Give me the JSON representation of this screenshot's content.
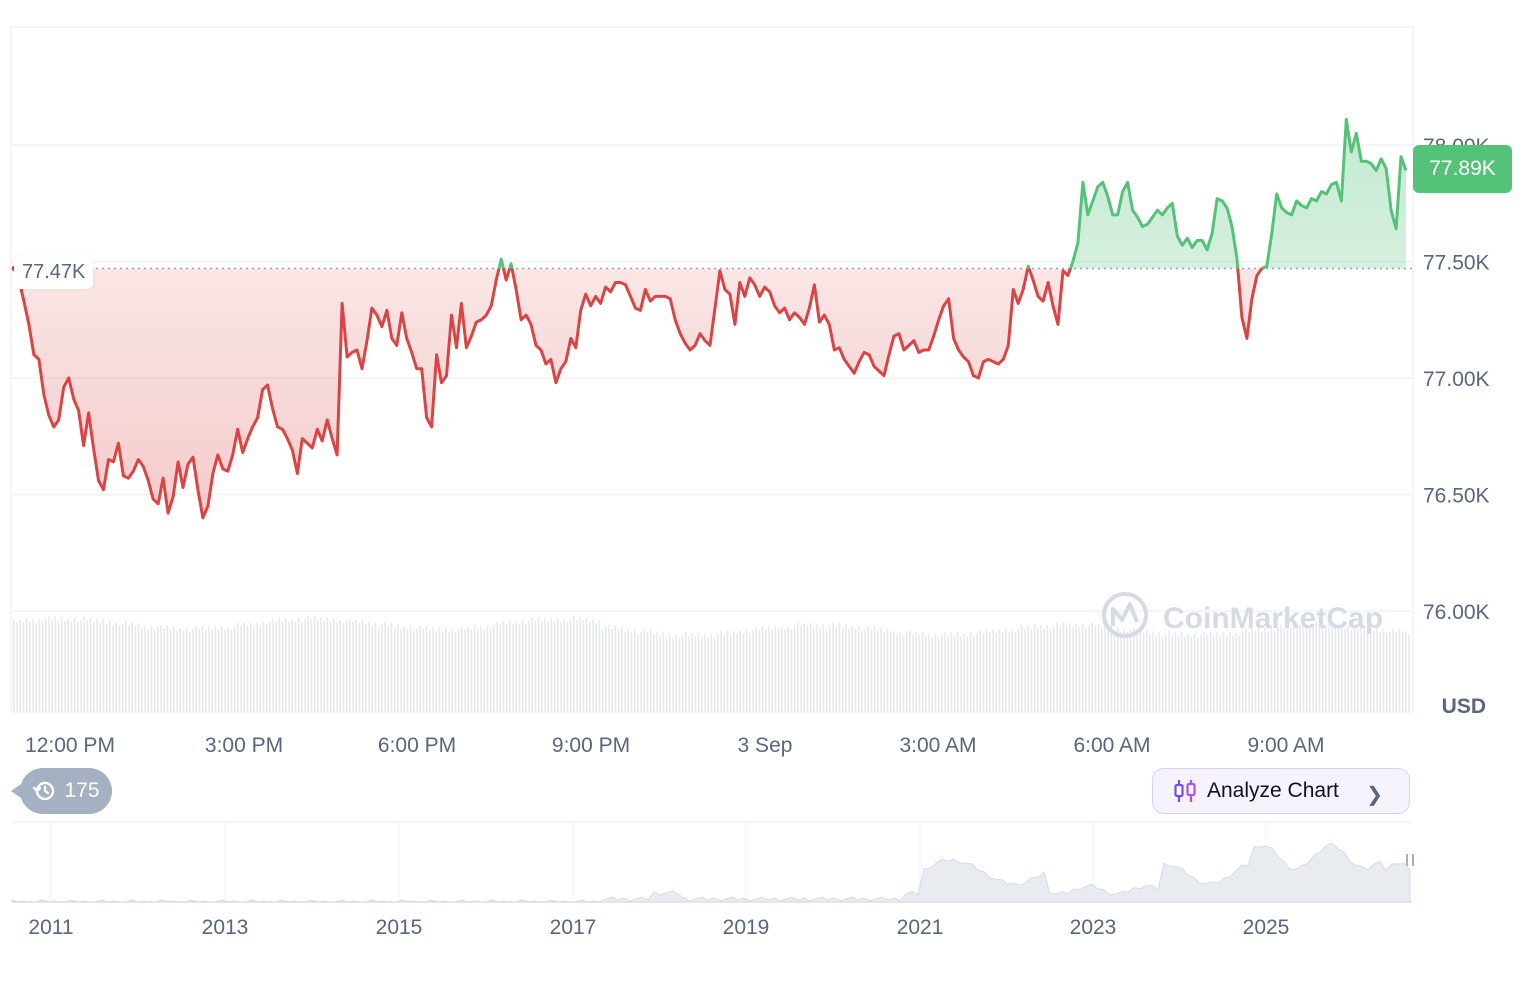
{
  "chart_data": [
    {
      "type": "area",
      "x_ticks": [
        "12:00 PM",
        "3:00 PM",
        "6:00 PM",
        "9:00 PM",
        "3 Sep",
        "3:00 AM",
        "6:00 AM",
        "9:00 AM"
      ],
      "y_ticks": [
        "76.00K",
        "76.50K",
        "77.00K",
        "77.50K",
        "78.00K"
      ],
      "ylim": [
        76000,
        78000
      ],
      "y_unit": "USD",
      "reference_value": 77470,
      "reference_label": "77.47K",
      "current_value": 77890,
      "current_label": "77.89K",
      "grid": true,
      "values": [
        77470,
        77420,
        77330,
        77230,
        77100,
        77080,
        76930,
        76840,
        76790,
        76820,
        76960,
        77000,
        76910,
        76860,
        76710,
        76850,
        76700,
        76560,
        76520,
        76650,
        76640,
        76720,
        76580,
        76570,
        76600,
        76650,
        76620,
        76560,
        76480,
        76460,
        76570,
        76420,
        76490,
        76640,
        76530,
        76630,
        76660,
        76520,
        76400,
        76450,
        76590,
        76670,
        76610,
        76600,
        76670,
        76780,
        76680,
        76740,
        76790,
        76830,
        76950,
        76970,
        76870,
        76790,
        76780,
        76740,
        76690,
        76590,
        76740,
        76720,
        76700,
        76780,
        76730,
        76820,
        76740,
        76670,
        77320,
        77090,
        77110,
        77120,
        77040,
        77160,
        77300,
        77270,
        77220,
        77290,
        77170,
        77140,
        77280,
        77170,
        77110,
        77040,
        77040,
        76830,
        76790,
        77100,
        76980,
        77010,
        77270,
        77130,
        77320,
        77130,
        77180,
        77240,
        77250,
        77270,
        77310,
        77420,
        77510,
        77420,
        77490,
        77380,
        77250,
        77270,
        77230,
        77140,
        77120,
        77060,
        77080,
        76980,
        77040,
        77070,
        77170,
        77130,
        77290,
        77360,
        77310,
        77350,
        77320,
        77390,
        77370,
        77410,
        77410,
        77400,
        77350,
        77300,
        77290,
        77380,
        77330,
        77350,
        77350,
        77350,
        77340,
        77250,
        77190,
        77150,
        77120,
        77140,
        77190,
        77160,
        77140,
        77300,
        77460,
        77380,
        77360,
        77230,
        77410,
        77350,
        77430,
        77400,
        77350,
        77390,
        77370,
        77310,
        77280,
        77300,
        77250,
        77280,
        77260,
        77230,
        77300,
        77400,
        77240,
        77270,
        77230,
        77120,
        77130,
        77080,
        77050,
        77020,
        77070,
        77110,
        77100,
        77050,
        77030,
        77010,
        77100,
        77180,
        77190,
        77120,
        77140,
        77160,
        77110,
        77120,
        77120,
        77180,
        77250,
        77310,
        77340,
        77170,
        77120,
        77090,
        77070,
        77010,
        77000,
        77070,
        77080,
        77070,
        77060,
        77080,
        77140,
        77380,
        77320,
        77380,
        77480,
        77420,
        77350,
        77330,
        77410,
        77310,
        77230,
        77460,
        77440,
        77500,
        77580,
        77840,
        77700,
        77760,
        77820,
        77840,
        77780,
        77700,
        77700,
        77800,
        77840,
        77720,
        77690,
        77650,
        77660,
        77690,
        77720,
        77700,
        77730,
        77750,
        77610,
        77570,
        77600,
        77560,
        77590,
        77590,
        77550,
        77620,
        77770,
        77760,
        77730,
        77650,
        77510,
        77260,
        77170,
        77340,
        77440,
        77470,
        77480,
        77620,
        77790,
        77730,
        77710,
        77700,
        77760,
        77740,
        77730,
        77770,
        77760,
        77800,
        77790,
        77830,
        77840,
        77760,
        78110,
        77970,
        78050,
        77930,
        77930,
        77920,
        77890,
        77940,
        77900,
        77720,
        77640,
        77950,
        77890
      ]
    },
    {
      "type": "area",
      "x_ticks": [
        "2011",
        "2013",
        "2015",
        "2017",
        "2019",
        "2021",
        "2023",
        "2025"
      ]
    }
  ],
  "watermark": "CoinMarketCap",
  "history_count": "175",
  "analyze_label": "Analyze Chart",
  "colors": {
    "up": "#55c27a",
    "down": "#d94545",
    "grid": "#eff2f5",
    "accent": "#6f4cf6"
  }
}
